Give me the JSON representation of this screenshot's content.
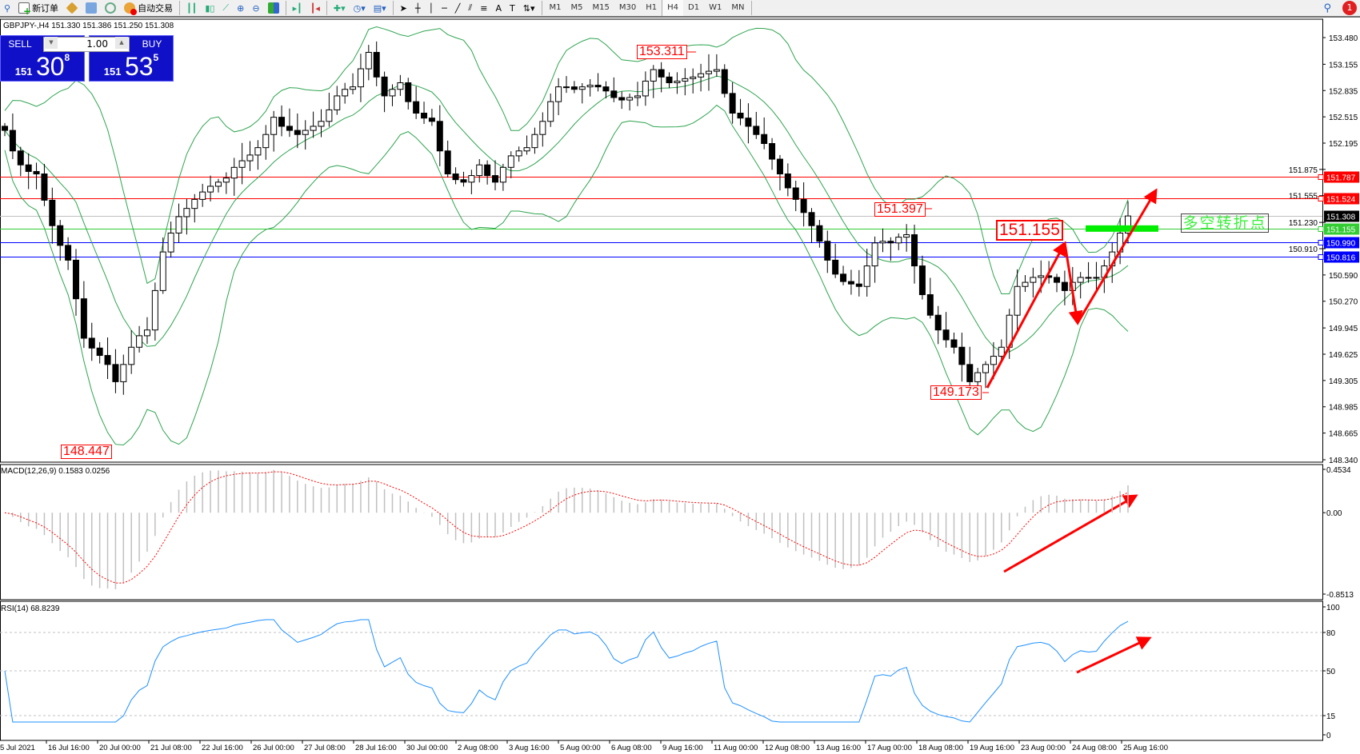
{
  "toolbar": {
    "new_order": "新订单",
    "auto_trading": "自动交易",
    "timeframes": [
      "M1",
      "M5",
      "M15",
      "M30",
      "H1",
      "H4",
      "D1",
      "W1",
      "MN"
    ],
    "active_timeframe": "H4",
    "notification_count": "1"
  },
  "chart_header": {
    "symbol_info": "GBPJPY-,H4  151.330 151.386 151.250 151.308"
  },
  "trade_panel": {
    "sell_label": "SELL",
    "buy_label": "BUY",
    "lot": "1.00",
    "sell_prefix": "151",
    "sell_big": "30",
    "sell_sup": "8",
    "buy_prefix": "151",
    "buy_big": "53",
    "buy_sup": "5"
  },
  "annotations": {
    "high_label": "153.311",
    "swing_high_label": "151.397",
    "pivot_label": "151.155",
    "swing_low_label": "149.173",
    "low_label": "148.447",
    "pivot_text": "多空转折点"
  },
  "chart_data": {
    "type": "candlestick",
    "symbol": "GBPJPY-",
    "timeframe": "H4",
    "closes": [
      152.35,
      152.1,
      151.93,
      151.85,
      151.82,
      151.5,
      151.19,
      150.95,
      150.77,
      150.3,
      149.82,
      149.7,
      149.61,
      149.5,
      149.29,
      149.5,
      149.71,
      149.85,
      149.92,
      150.4,
      150.87,
      151.1,
      151.3,
      151.4,
      151.51,
      151.6,
      151.67,
      151.72,
      151.77,
      151.9,
      151.98,
      152.05,
      152.14,
      152.3,
      152.51,
      152.4,
      152.35,
      152.3,
      152.35,
      152.4,
      152.46,
      152.6,
      152.77,
      152.85,
      152.88,
      153.1,
      153.3,
      153.0,
      152.77,
      152.85,
      152.93,
      152.7,
      152.56,
      152.5,
      152.46,
      152.1,
      151.82,
      151.75,
      151.72,
      151.8,
      151.93,
      151.8,
      151.72,
      151.9,
      152.04,
      152.1,
      152.14,
      152.3,
      152.46,
      152.7,
      152.88,
      152.88,
      152.85,
      152.88,
      152.9,
      152.88,
      152.83,
      152.75,
      152.72,
      152.75,
      152.77,
      152.95,
      153.09,
      153.0,
      152.93,
      152.95,
      152.98,
      153.0,
      153.04,
      153.07,
      153.09,
      152.8,
      152.56,
      152.5,
      152.4,
      152.3,
      152.19,
      152.0,
      151.82,
      151.65,
      151.51,
      151.35,
      151.19,
      151.0,
      150.77,
      150.6,
      150.51,
      150.48,
      150.45,
      150.7,
      150.98,
      151.0,
      150.98,
      151.05,
      151.08,
      150.7,
      150.35,
      150.1,
      149.92,
      149.8,
      149.71,
      149.5,
      149.29,
      149.4,
      149.5,
      149.6,
      149.71,
      150.1,
      150.45,
      150.5,
      150.56,
      150.58,
      150.56,
      150.5,
      150.4,
      150.5,
      150.56,
      150.55,
      150.56,
      150.7,
      150.87,
      151.1,
      151.308
    ],
    "price_axis_ticks": [
      "153.480",
      "153.155",
      "152.835",
      "152.515",
      "152.195",
      "151.875",
      "151.555",
      "151.230",
      "150.910",
      "150.590",
      "150.270",
      "149.945",
      "149.625",
      "149.305",
      "148.985",
      "148.665",
      "148.340"
    ],
    "price_range": [
      148.34,
      153.48
    ],
    "time_axis_labels": [
      "5 Jul 2021",
      "16 Jul 16:00",
      "20 Jul 00:00",
      "21 Jul 08:00",
      "22 Jul 16:00",
      "26 Jul 00:00",
      "27 Jul 08:00",
      "28 Jul 16:00",
      "30 Jul 00:00",
      "2 Aug 08:00",
      "3 Aug 16:00",
      "5 Aug 00:00",
      "6 Aug 08:00",
      "9 Aug 16:00",
      "11 Aug 00:00",
      "12 Aug 08:00",
      "13 Aug 16:00",
      "17 Aug 00:00",
      "18 Aug 08:00",
      "19 Aug 16:00",
      "23 Aug 00:00",
      "24 Aug 08:00",
      "25 Aug 16:00"
    ],
    "horizontal_lines": [
      {
        "price": 151.787,
        "label": "151.787",
        "color": "#ff0000"
      },
      {
        "price": 151.524,
        "label": "151.524",
        "color": "#ff0000"
      },
      {
        "price": 151.308,
        "label": "151.308",
        "color": "#000000",
        "line_color": "#c0c0c0"
      },
      {
        "price": 151.155,
        "label": "151.155",
        "color": "#33cc33"
      },
      {
        "price": 150.99,
        "label": "150.990",
        "color": "#0000ff"
      },
      {
        "price": 150.816,
        "label": "150.816",
        "color": "#0000ff"
      }
    ],
    "bollinger_color": "#2ea44f",
    "macd": {
      "title": "MACD(12,26,9) 0.1583 0.0256",
      "axis_ticks": [
        "0.4534",
        "0.00",
        "-0.8513"
      ],
      "range": [
        -0.8513,
        0.4534
      ],
      "histogram_color": "#c0c0c0",
      "signal_color": "#ff0000"
    },
    "rsi": {
      "title": "RSI(14) 68.8239",
      "axis_ticks": [
        "100",
        "80",
        "50",
        "15",
        "0"
      ],
      "levels": [
        80,
        50,
        15
      ],
      "range": [
        0,
        100
      ],
      "line_color": "#1e90ff"
    },
    "arrow_color": "#ff0000"
  }
}
